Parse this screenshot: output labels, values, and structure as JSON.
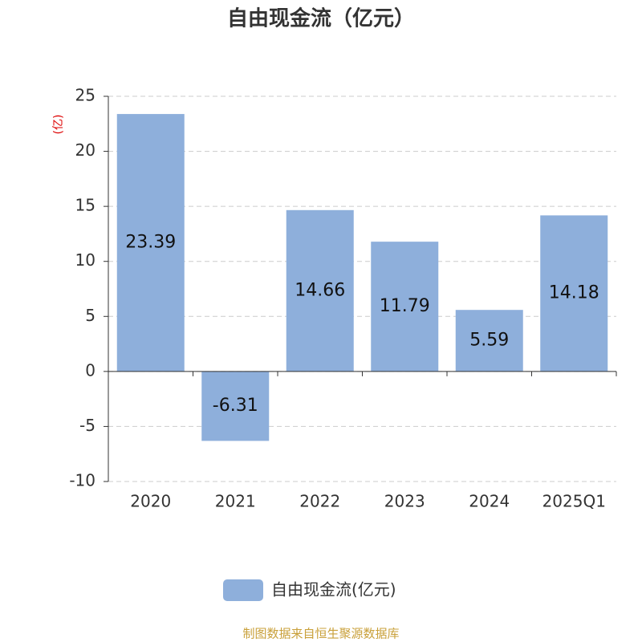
{
  "chart_data": {
    "type": "bar",
    "title": "自由现金流（亿元）",
    "y_label": "(亿)",
    "categories": [
      "2020",
      "2021",
      "2022",
      "2023",
      "2024",
      "2025Q1"
    ],
    "series": [
      {
        "name": "自由现金流(亿元)",
        "color": "#8eafdb",
        "values": [
          23.39,
          -6.31,
          14.66,
          11.79,
          5.59,
          14.18
        ]
      }
    ],
    "ylim": [
      -10,
      25
    ],
    "yticks": [
      -10,
      -5,
      0,
      5,
      10,
      15,
      20,
      25
    ],
    "grid": true,
    "source": "制图数据来自恒生聚源数据库"
  }
}
